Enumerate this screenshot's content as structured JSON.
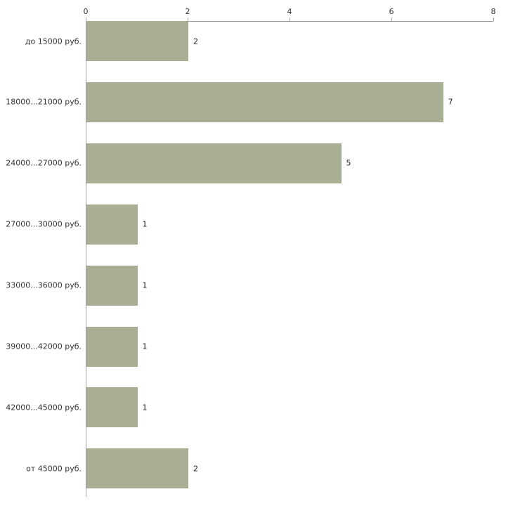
{
  "chart_data": {
    "type": "bar",
    "orientation": "horizontal",
    "title": "",
    "xlabel": "",
    "ylabel": "",
    "categories": [
      "до 15000 руб.",
      "18000...21000 руб.",
      "24000...27000 руб.",
      "27000...30000 руб.",
      "33000...36000 руб.",
      "39000...42000 руб.",
      "42000...45000 руб.",
      "от 45000 руб."
    ],
    "values": [
      2,
      7,
      5,
      1,
      1,
      1,
      1,
      2
    ],
    "value_labels": [
      "2",
      "7",
      "5",
      "1",
      "1",
      "1",
      "1",
      "2"
    ],
    "xlim": [
      0,
      8
    ],
    "x_ticks": [
      "0",
      "2",
      "4",
      "6",
      "8"
    ],
    "x_tick_values": [
      0,
      2,
      4,
      6,
      8
    ],
    "grid": false,
    "legend": "none",
    "axis_position": "top",
    "bar_color": "#a9af94",
    "axis_color": "#a0a0a0",
    "label_color": "#333333"
  }
}
